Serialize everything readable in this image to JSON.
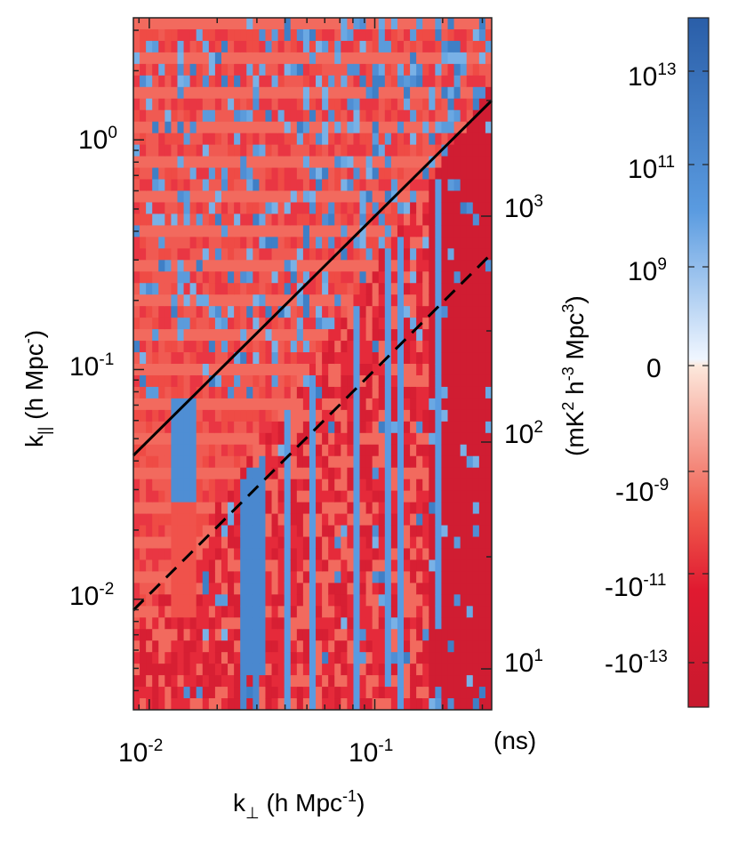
{
  "chart_data": {
    "type": "heatmap",
    "title": "",
    "xlabel": {
      "main": "k",
      "sub": "⊥",
      "units": " (h Mpc",
      "sup": "-1",
      "close": ")"
    },
    "ylabel": {
      "main": "k",
      "sub": "||",
      "units": " (h Mpc",
      "sup": "-",
      "close": ")"
    },
    "x_axis": {
      "scale": "log",
      "range": [
        0.0085,
        0.33
      ],
      "ticks": [
        {
          "value": 0.01,
          "base": "10",
          "exp": "-2"
        },
        {
          "value": 0.1,
          "base": "10",
          "exp": "-1"
        }
      ]
    },
    "y_axis": {
      "scale": "log",
      "range": [
        0.0033,
        3.4
      ],
      "ticks": [
        {
          "value": 0.01,
          "base": "10",
          "exp": "-2"
        },
        {
          "value": 0.1,
          "base": "10",
          "exp": "-1"
        },
        {
          "value": 1.0,
          "base": "10",
          "exp": "0"
        }
      ]
    },
    "secondary_y_axis": {
      "label": "(ns)",
      "ticks": [
        {
          "value": 0.0069,
          "base": "10",
          "exp": "1"
        },
        {
          "value": 0.048,
          "base": "10",
          "exp": "2"
        },
        {
          "value": 0.62,
          "base": "10",
          "exp": "3"
        }
      ]
    },
    "colorbar": {
      "label": {
        "open": "(mK",
        "sup1": "2",
        "mid1": " h",
        "sup2": "-3",
        "mid2": " Mpc",
        "sup3": "3",
        "close": ")"
      },
      "ticks": [
        {
          "base": "10",
          "exp": "13"
        },
        {
          "base": "10",
          "exp": "11"
        },
        {
          "base": "10",
          "exp": "9"
        },
        {
          "base": "0",
          "exp": ""
        },
        {
          "base": "-10",
          "exp": "-9"
        },
        {
          "base": "-10",
          "exp": "-11"
        },
        {
          "base": "-10",
          "exp": "-13"
        }
      ],
      "colors": {
        "pos_high": "#2a5ea8",
        "pos_mid": "#5a9be0",
        "pos_low": "#f0f6ff",
        "neg_low": "#fde8dc",
        "neg_mid": "#ef5a4c",
        "neg_high": "#c8192e"
      }
    },
    "horizon_lines": [
      {
        "name": "horizon",
        "style": "solid",
        "k_perp": [
          0.0085,
          0.33
        ],
        "k_par": [
          0.042,
          1.6
        ]
      },
      {
        "name": "horizon-buffer",
        "style": "dashed",
        "k_perp": [
          0.0085,
          0.33
        ],
        "k_par": [
          0.0086,
          0.33
        ]
      }
    ],
    "heatmap": {
      "x_columns": 57,
      "y_rows": 60,
      "value_range": [
        "-10^13",
        "10^13"
      ],
      "description_values": "negative (red) power dominates; positive (blue) cells clustered at low k_perp columns and above the horizon line"
    }
  }
}
